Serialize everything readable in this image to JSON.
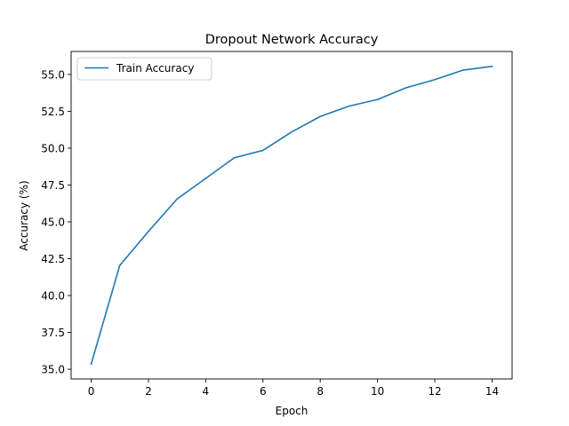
{
  "chart_data": {
    "type": "line",
    "title": "Dropout Network Accuracy",
    "xlabel": "Epoch",
    "ylabel": "Accuracy (%)",
    "x": [
      0,
      1,
      2,
      3,
      4,
      5,
      6,
      7,
      8,
      9,
      10,
      11,
      12,
      13,
      14
    ],
    "series": [
      {
        "name": "Train Accuracy",
        "color": "#1f77b4",
        "values": [
          35.35,
          42.05,
          44.35,
          46.55,
          47.95,
          49.35,
          49.85,
          51.1,
          52.15,
          52.85,
          53.3,
          54.1,
          54.65,
          55.3,
          55.55
        ]
      }
    ],
    "xlim": [
      -0.7,
      14.7
    ],
    "ylim": [
      34.34,
      56.56
    ],
    "xticks": [
      0,
      2,
      4,
      6,
      8,
      10,
      12,
      14
    ],
    "xtick_labels": [
      "0",
      "2",
      "4",
      "6",
      "8",
      "10",
      "12",
      "14"
    ],
    "yticks": [
      35.0,
      37.5,
      40.0,
      42.5,
      45.0,
      47.5,
      50.0,
      52.5,
      55.0
    ],
    "ytick_labels": [
      "35.0",
      "37.5",
      "40.0",
      "42.5",
      "45.0",
      "47.5",
      "50.0",
      "52.5",
      "55.0"
    ],
    "grid": false,
    "legend": "top-left"
  }
}
